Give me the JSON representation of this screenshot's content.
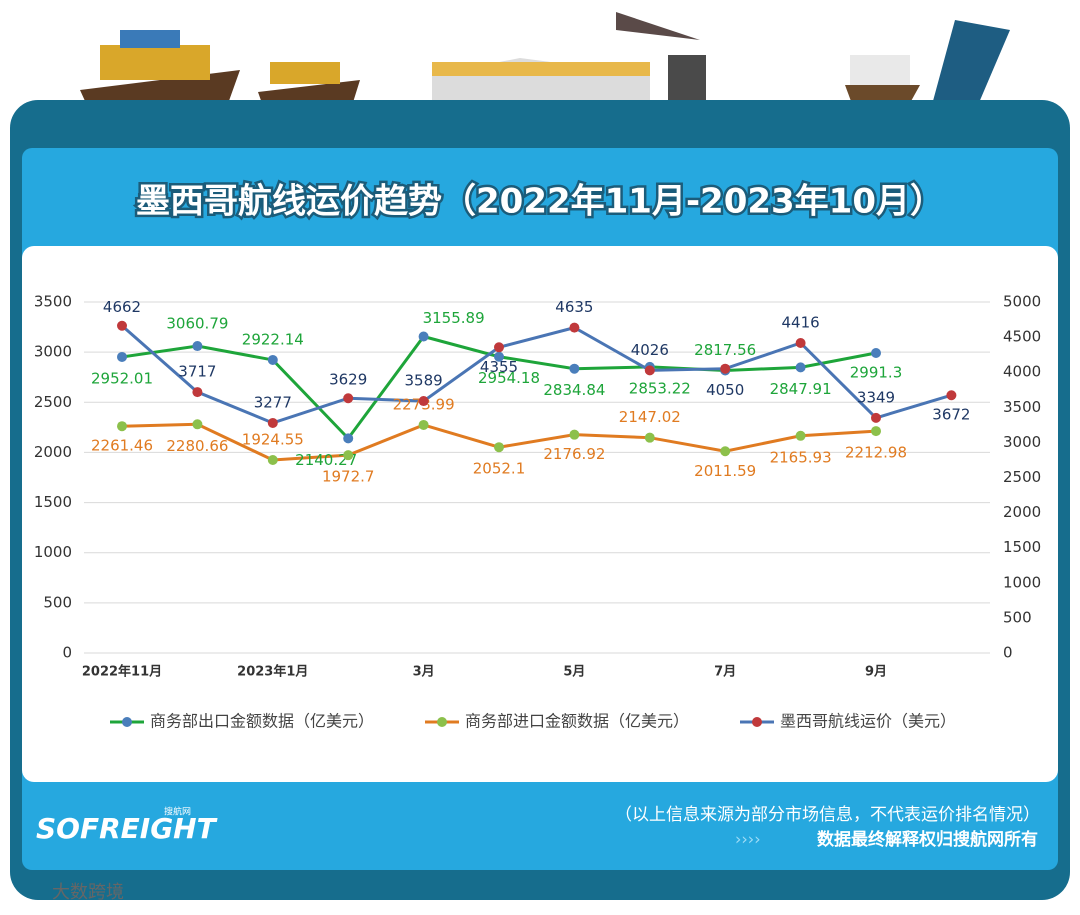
{
  "header": {
    "title": "墨西哥航线运价趋势（2022年11月-2023年10月）"
  },
  "chart_data": {
    "type": "line",
    "categories": [
      "2022年11月",
      null,
      "2023年1月",
      null,
      "3月",
      null,
      "5月",
      null,
      "7月",
      null,
      "9月",
      null
    ],
    "series": [
      {
        "name": "商务部出口金额数据（亿美元）",
        "color": "#1ea53a",
        "marker_color": "#4a7ebb",
        "values": [
          2952.01,
          3060.79,
          2922.14,
          2140.27,
          3155.89,
          2954.18,
          2834.84,
          2853.22,
          2817.56,
          2847.91,
          2991.3,
          null
        ]
      },
      {
        "name": "商务部进口金额数据（亿美元）",
        "color": "#e07b21",
        "marker_color": "#8cc04b",
        "values": [
          2261.46,
          2280.66,
          1924.55,
          1972.7,
          2273.99,
          2052.1,
          2176.92,
          2147.02,
          2011.59,
          2165.93,
          2212.98,
          null
        ]
      },
      {
        "name": "墨西哥航线运价（美元）",
        "color": "#4a75b4",
        "marker_color": "#c0393b",
        "axis": "y2",
        "values": [
          4662,
          3717,
          3277,
          3629,
          3589,
          4355,
          4635,
          4026,
          4050,
          4416,
          3349,
          3672
        ]
      }
    ],
    "ylim": [
      0,
      3500
    ],
    "yticks": [
      0,
      500,
      1000,
      1500,
      2000,
      2500,
      3000,
      3500
    ],
    "y2lim": [
      0,
      5000
    ],
    "y2ticks": [
      0,
      500,
      1000,
      1500,
      2000,
      2500,
      3000,
      3500,
      4000,
      4500,
      5000
    ],
    "grid": true,
    "legend": "bottom"
  },
  "footer": {
    "logo": "SOFREIGHT",
    "logo_sub": "搜航网",
    "note": "（以上信息来源为部分市场信息，不代表运价排名情况）",
    "rights": "数据最终解释权归搜航网所有",
    "watermark": "大数跨境"
  }
}
